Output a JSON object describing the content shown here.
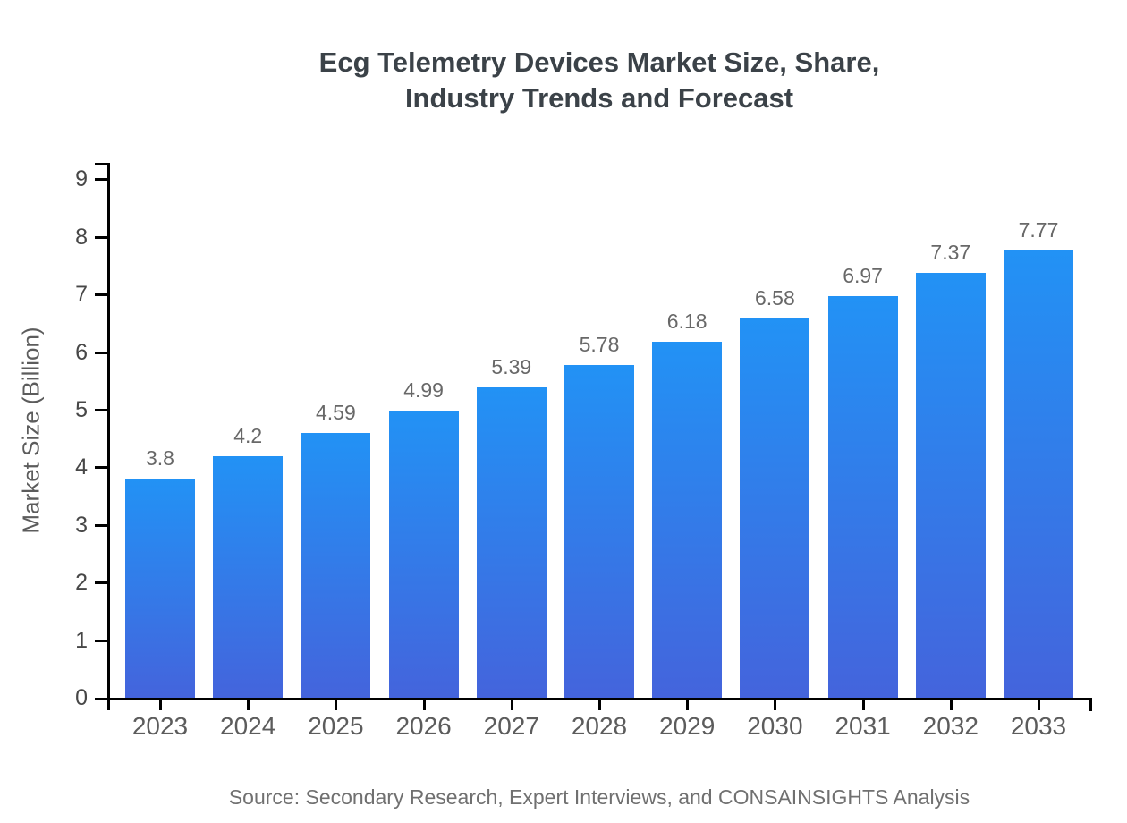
{
  "title": "Ecg Telemetry Devices Market Size, Share,\nIndustry Trends and Forecast",
  "source": "Source: Secondary Research, Expert Interviews, and CONSAINSIGHTS Analysis",
  "chart_data": {
    "type": "bar",
    "title": "Ecg Telemetry Devices Market Size, Share, Industry Trends and Forecast",
    "categories": [
      "2023",
      "2024",
      "2025",
      "2026",
      "2027",
      "2028",
      "2029",
      "2030",
      "2031",
      "2032",
      "2033"
    ],
    "values": [
      3.8,
      4.2,
      4.59,
      4.99,
      5.39,
      5.78,
      6.18,
      6.58,
      6.97,
      7.37,
      7.77
    ],
    "value_labels": [
      "3.8",
      "4.2",
      "4.59",
      "4.99",
      "5.39",
      "5.78",
      "6.18",
      "6.58",
      "6.97",
      "7.37",
      "7.77"
    ],
    "xlabel": "",
    "ylabel": "Market Size (Billion)",
    "ylim": [
      0,
      9
    ],
    "yticks": [
      0,
      1,
      2,
      3,
      4,
      5,
      6,
      7,
      8,
      9
    ],
    "grid": false,
    "legend": false,
    "colors": {
      "bar_gradient_top": "#2292F5",
      "bar_gradient_bottom": "#4464DC",
      "axis": "#000000",
      "title_text": "#3b4248",
      "value_label_text": "#686868",
      "y_tick_text": "#474747",
      "x_tick_text": "#5c5c5c",
      "source_text": "#707070"
    }
  }
}
